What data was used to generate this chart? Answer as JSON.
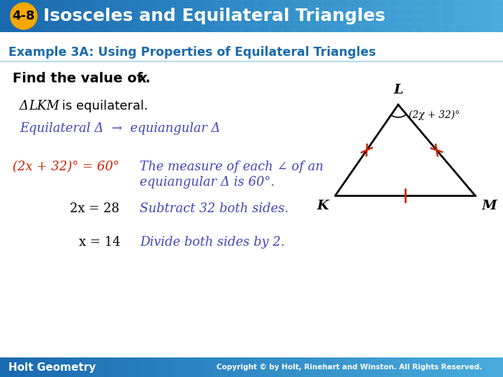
{
  "title_badge": "4-8",
  "title_text": "Isosceles and Equilateral Triangles",
  "header_bg_left": "#1B6BB0",
  "header_bg_right": "#4AADDE",
  "header_text_color": "#FFFFFF",
  "badge_bg_color": "#F5A800",
  "badge_text_color": "#000000",
  "subtitle": "Example 3A: Using Properties of Equilateral Triangles",
  "subtitle_text_color": "#1A6BAA",
  "body_bg_color": "#FFFFFF",
  "footer_bg_left": "#1B6BB0",
  "footer_bg_right": "#4AADDE",
  "footer_text": "Holt Geometry",
  "footer_text_color": "#FFFFFF",
  "footer_copyright": "Copyright © by Holt, Rinehart and Winston. All Rights Reserved.",
  "footer_copyright_color": "#FFFFFF",
  "find_text_bold": "Find the value of ",
  "find_x_italic": "x",
  "find_dot": ".",
  "step1_delta": "Δ",
  "step1_lkm": "LKM",
  "step1_rest": " is equilateral.",
  "step2_text": "Equilateral Δ  →  equiangular Δ",
  "step2_color": "#4444BB",
  "step3_eq": "(2x + 32)° = 60°",
  "step3_eq_color": "#CC2200",
  "step3_desc_line1": "The measure of each ∠ of an",
  "step3_desc_line2": "equiangular Δ is 60°.",
  "step3_desc_color": "#4444BB",
  "step4_eq": "2x = 28",
  "step4_desc": "Subtract 32 both sides.",
  "step4_color": "#4444BB",
  "step5_eq": "x = 14",
  "step5_desc": "Divide both sides by 2.",
  "step5_color": "#4444BB",
  "tri_L": [
    570,
    390
  ],
  "tri_K": [
    480,
    260
  ],
  "tri_M": [
    680,
    260
  ],
  "tick_color": "#CC2200",
  "tri_line_color": "#000000"
}
